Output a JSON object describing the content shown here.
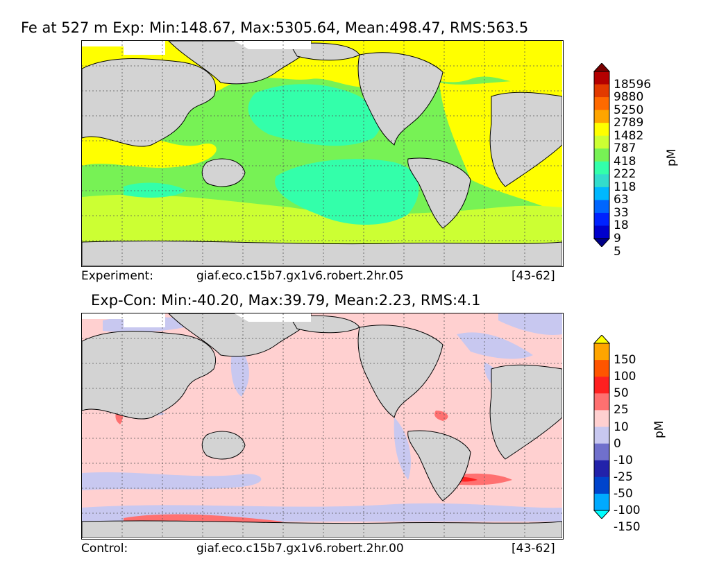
{
  "top_panel": {
    "title": "Fe at 527 m Exp: Min:148.67, Max:5305.64, Mean:498.47, RMS:563.5",
    "caption_left": "Experiment:",
    "caption_mid": "giaf.eco.c15b7.gx1v6.robert.2hr.05",
    "caption_right": "[43-62]",
    "colorbar": {
      "unit": "pM",
      "ticks": [
        "18596",
        "9880",
        "5250",
        "2789",
        "1482",
        "787",
        "418",
        "222",
        "118",
        "63",
        "33",
        "18",
        "9",
        "5"
      ],
      "colors": [
        "#7a0000",
        "#b40000",
        "#e23a00",
        "#ff6a00",
        "#ffa500",
        "#ffff00",
        "#ccff33",
        "#77f255",
        "#33ffaa",
        "#33ddcc",
        "#00b8ff",
        "#0066ff",
        "#0022ff",
        "#0000cc",
        "#000088"
      ]
    }
  },
  "bottom_panel": {
    "title": "Exp-Con: Min:-40.20, Max:39.79, Mean:2.23, RMS:4.1",
    "caption_left": "Control:",
    "caption_mid": "giaf.eco.c15b7.gx1v6.robert.2hr.00",
    "caption_right": "[43-62]",
    "colorbar": {
      "unit": "pM",
      "ticks": [
        "150",
        "100",
        "50",
        "25",
        "10",
        "0",
        "-10",
        "-25",
        "-50",
        "-100",
        "-150"
      ],
      "colors": [
        "#ffff00",
        "#ffa500",
        "#ff5500",
        "#ff2020",
        "#ff7070",
        "#ffd0d0",
        "#c8c8f0",
        "#7070cc",
        "#2222aa",
        "#0044cc",
        "#00aaff",
        "#00ffff"
      ]
    }
  }
}
